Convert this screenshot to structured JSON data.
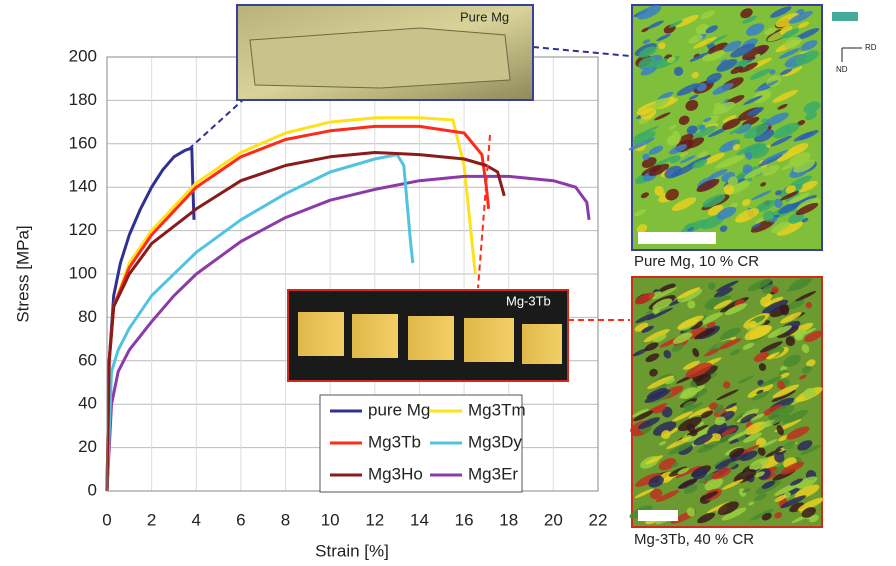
{
  "chart_data": {
    "type": "line",
    "xlabel": "Strain [%]",
    "ylabel": "Stress [MPa]",
    "xlim": [
      0,
      22
    ],
    "xticks": [
      0,
      2,
      4,
      6,
      8,
      10,
      12,
      14,
      16,
      18,
      20,
      22
    ],
    "ylim": [
      0,
      200
    ],
    "yticks": [
      0,
      20,
      40,
      60,
      80,
      100,
      120,
      140,
      160,
      180,
      200
    ],
    "grid": true,
    "series": [
      {
        "name": "pure Mg",
        "color": "#2e3192",
        "x": [
          0,
          0.1,
          0.3,
          0.6,
          1,
          1.5,
          2,
          2.5,
          3,
          3.5,
          3.8,
          3.85,
          3.9
        ],
        "values": [
          0,
          60,
          90,
          105,
          118,
          130,
          140,
          148,
          154,
          157,
          158,
          140,
          125
        ]
      },
      {
        "name": "Mg3Tm",
        "color": "#ffe11a",
        "x": [
          0,
          0.1,
          0.3,
          1,
          2,
          4,
          6,
          8,
          10,
          12,
          14,
          15.5,
          16,
          16.3,
          16.5
        ],
        "values": [
          0,
          60,
          85,
          105,
          120,
          142,
          156,
          165,
          170,
          172,
          172,
          171,
          150,
          120,
          100
        ]
      },
      {
        "name": "Mg3Tb",
        "color": "#ff2a1a",
        "x": [
          0,
          0.1,
          0.3,
          1,
          2,
          4,
          6,
          8,
          10,
          12,
          14,
          16,
          16.8,
          17,
          17.1
        ],
        "values": [
          0,
          60,
          85,
          103,
          118,
          140,
          154,
          162,
          166,
          168,
          168,
          165,
          155,
          140,
          130
        ]
      },
      {
        "name": "Mg3Er",
        "color": "#8b3aa8",
        "x": [
          0,
          0.2,
          0.5,
          1,
          2,
          3,
          4,
          6,
          8,
          10,
          12,
          14,
          16,
          18,
          20,
          21,
          21.5,
          21.6
        ],
        "values": [
          0,
          40,
          55,
          65,
          78,
          90,
          100,
          115,
          126,
          134,
          139,
          143,
          145,
          145,
          143,
          140,
          133,
          125
        ]
      },
      {
        "name": "Mg3Dy",
        "color": "#4fc3e0",
        "x": [
          0,
          0.2,
          0.5,
          1,
          2,
          4,
          6,
          8,
          10,
          12,
          13,
          13.3,
          13.6,
          13.7
        ],
        "values": [
          0,
          55,
          65,
          75,
          90,
          110,
          125,
          137,
          147,
          153,
          155,
          150,
          115,
          105
        ]
      },
      {
        "name": "Mg3Ho",
        "color": "#8b1a1a",
        "x": [
          0,
          0.1,
          0.3,
          1,
          2,
          4,
          6,
          8,
          10,
          12,
          14,
          16,
          17,
          17.5,
          17.8
        ],
        "values": [
          0,
          60,
          85,
          100,
          114,
          130,
          143,
          150,
          154,
          156,
          155,
          153,
          150,
          147,
          136
        ]
      }
    ],
    "annotations": [
      "Pure Mg",
      "Mg-3Tb",
      "Pure Mg, 10 % CR",
      "Mg-3Tb, 40 % CR",
      "RD",
      "ND"
    ]
  }
}
